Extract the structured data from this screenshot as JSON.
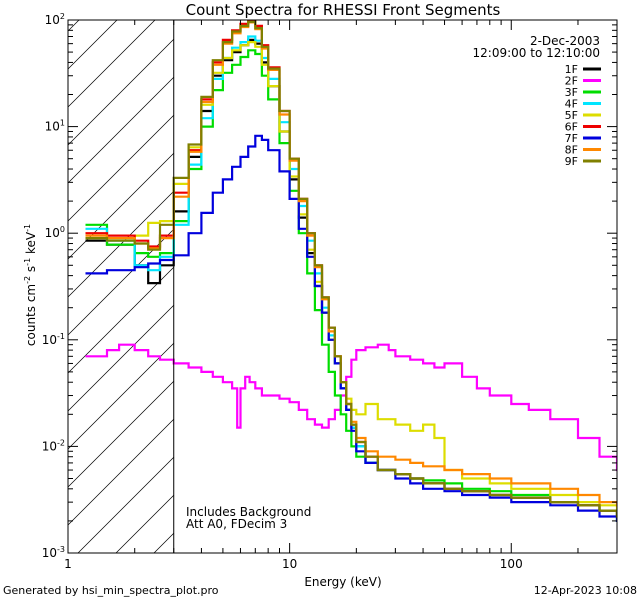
{
  "chart_data": {
    "type": "line",
    "title": "Count Spectra for RHESSI Front Segments",
    "xlabel": "Energy (keV)",
    "ylabel_parts": [
      "counts cm",
      "-2",
      " s",
      "-1",
      " keV",
      "-1"
    ],
    "xscale": "log",
    "yscale": "log",
    "xlim": [
      1,
      300
    ],
    "ylim": [
      0.001,
      100
    ],
    "x_tick_labels": [
      {
        "value": 1,
        "label": "1"
      },
      {
        "value": 10,
        "label": "10"
      },
      {
        "value": 100,
        "label": "100"
      }
    ],
    "y_tick_labels": [
      {
        "value": 0.001,
        "base": "10",
        "exp": "-3"
      },
      {
        "value": 0.01,
        "base": "10",
        "exp": "-2"
      },
      {
        "value": 0.1,
        "base": "10",
        "exp": "-1"
      },
      {
        "value": 1,
        "base": "10",
        "exp": "0"
      },
      {
        "value": 10,
        "base": "10",
        "exp": "1"
      },
      {
        "value": 100,
        "base": "10",
        "exp": "2"
      }
    ],
    "date_label": "2-Dec-2003",
    "time_range_label": "12:09:00 to 12:10:00",
    "attenuator_shade_max_keV": 3,
    "annotations": [
      "Includes Background",
      "Att A0, FDecim 3"
    ],
    "footer_left": "Generated by hsi_min_spectra_plot.pro",
    "footer_right": "12-Apr-2023 10:08",
    "series": [
      {
        "name": "1F",
        "color": "#000000",
        "x": [
          1.2,
          1.5,
          2,
          2.3,
          2.6,
          3,
          3.5,
          4,
          4.5,
          5,
          5.5,
          6,
          6.5,
          7,
          7.5,
          8,
          9,
          10,
          11,
          12,
          13,
          14,
          15,
          16,
          17,
          18,
          19,
          20,
          22,
          25,
          30,
          35,
          40,
          50,
          60,
          80,
          100,
          150,
          200,
          250,
          300
        ],
        "y": [
          0.85,
          0.78,
          0.5,
          0.34,
          0.5,
          1.6,
          5.2,
          14,
          30,
          42,
          50,
          58,
          65,
          60,
          40,
          24,
          9,
          3.2,
          1.4,
          0.65,
          0.32,
          0.18,
          0.1,
          0.06,
          0.035,
          0.022,
          0.015,
          0.01,
          0.007,
          0.006,
          0.0055,
          0.005,
          0.0045,
          0.004,
          0.0038,
          0.0035,
          0.0033,
          0.003,
          0.0028,
          0.0025,
          0.0022
        ]
      },
      {
        "name": "2F",
        "color": "#ff00ff",
        "x": [
          1.2,
          1.5,
          1.7,
          2,
          2.3,
          2.6,
          3,
          3.5,
          4,
          4.5,
          5,
          5.5,
          5.8,
          6,
          6.3,
          6.6,
          7,
          7.5,
          8,
          9,
          10,
          11,
          12,
          13,
          14,
          15,
          16,
          17,
          18,
          19,
          20,
          22,
          25,
          28,
          30,
          35,
          40,
          45,
          50,
          60,
          70,
          80,
          100,
          120,
          150,
          200,
          250,
          300
        ],
        "y": [
          0.07,
          0.08,
          0.09,
          0.08,
          0.07,
          0.065,
          0.06,
          0.055,
          0.05,
          0.045,
          0.04,
          0.035,
          0.015,
          0.035,
          0.045,
          0.04,
          0.035,
          0.03,
          0.03,
          0.028,
          0.026,
          0.022,
          0.018,
          0.016,
          0.015,
          0.018,
          0.022,
          0.03,
          0.045,
          0.065,
          0.08,
          0.085,
          0.09,
          0.08,
          0.07,
          0.065,
          0.06,
          0.055,
          0.06,
          0.045,
          0.035,
          0.03,
          0.025,
          0.022,
          0.018,
          0.012,
          0.008,
          0.006
        ]
      },
      {
        "name": "3F",
        "color": "#00dd00",
        "x": [
          1.2,
          1.5,
          2,
          2.3,
          2.6,
          3,
          3.5,
          4,
          4.5,
          5,
          5.5,
          6,
          6.5,
          7,
          7.5,
          8,
          9,
          10,
          11,
          12,
          13,
          14,
          15,
          16,
          17,
          18,
          19,
          20,
          22,
          25,
          30,
          35,
          40,
          50,
          60,
          80,
          100,
          150,
          200,
          250,
          300
        ],
        "y": [
          1.2,
          0.78,
          0.65,
          0.6,
          0.65,
          1.3,
          4,
          10,
          22,
          32,
          38,
          45,
          52,
          48,
          30,
          18,
          7,
          2.5,
          1,
          0.42,
          0.19,
          0.09,
          0.05,
          0.03,
          0.02,
          0.014,
          0.01,
          0.008,
          0.007,
          0.006,
          0.0055,
          0.005,
          0.0048,
          0.0045,
          0.004,
          0.0038,
          0.0035,
          0.003,
          0.0028,
          0.0025,
          0.002
        ]
      },
      {
        "name": "4F",
        "color": "#00e5ff",
        "x": [
          1.2,
          1.5,
          2,
          2.3,
          2.6,
          3,
          3.5,
          4,
          4.5,
          5,
          5.5,
          6,
          6.5,
          7,
          7.5,
          8,
          9,
          10,
          11,
          12,
          13,
          14,
          15,
          16,
          17,
          18,
          19,
          20,
          22,
          25,
          30,
          35,
          40,
          50,
          60,
          80,
          100,
          150,
          200,
          250,
          300
        ],
        "y": [
          1.1,
          0.85,
          0.5,
          0.45,
          0.6,
          1.2,
          4.4,
          12,
          28,
          44,
          55,
          62,
          70,
          64,
          44,
          28,
          11,
          4,
          1.8,
          0.85,
          0.42,
          0.2,
          0.11,
          0.06,
          0.035,
          0.022,
          0.015,
          0.01,
          0.007,
          0.006,
          0.0055,
          0.005,
          0.0045,
          0.004,
          0.0038,
          0.0035,
          0.0033,
          0.003,
          0.0028,
          0.0025,
          0.002
        ]
      },
      {
        "name": "5F",
        "color": "#dddd00",
        "x": [
          1.2,
          1.5,
          2,
          2.3,
          2.6,
          3,
          3.5,
          4,
          4.5,
          5,
          5.5,
          6,
          6.5,
          7,
          7.5,
          8,
          9,
          10,
          11,
          12,
          13,
          14,
          15,
          16,
          17,
          18,
          19,
          20,
          22,
          25,
          30,
          35,
          40,
          45,
          50,
          60,
          80,
          100,
          150,
          200,
          250,
          300
        ],
        "y": [
          0.9,
          0.9,
          0.95,
          1.25,
          1.3,
          2.9,
          6.4,
          16,
          32,
          44,
          52,
          58,
          62,
          56,
          38,
          24,
          9,
          3.4,
          1.5,
          0.7,
          0.35,
          0.18,
          0.1,
          0.06,
          0.04,
          0.028,
          0.022,
          0.02,
          0.025,
          0.018,
          0.016,
          0.014,
          0.016,
          0.012,
          0.006,
          0.005,
          0.0045,
          0.004,
          0.0035,
          0.003,
          0.0028,
          0.0025
        ]
      },
      {
        "name": "6F",
        "color": "#ee0000",
        "x": [
          1.2,
          1.5,
          2,
          2.3,
          2.6,
          3,
          3.5,
          4,
          4.5,
          5,
          5.5,
          6,
          6.5,
          7,
          7.5,
          8,
          9,
          10,
          11,
          12,
          13,
          14,
          15,
          16,
          17,
          18,
          19,
          20,
          22,
          25,
          30,
          35,
          40,
          50,
          60,
          80,
          100,
          150,
          200,
          250,
          300
        ],
        "y": [
          1,
          0.95,
          0.85,
          0.75,
          0.95,
          2.4,
          6,
          18,
          40,
          65,
          80,
          92,
          100,
          88,
          58,
          36,
          14,
          5,
          2.1,
          1,
          0.5,
          0.25,
          0.13,
          0.07,
          0.04,
          0.025,
          0.016,
          0.011,
          0.008,
          0.006,
          0.0055,
          0.005,
          0.0045,
          0.004,
          0.0038,
          0.0035,
          0.0033,
          0.003,
          0.0028,
          0.0025,
          0.0022
        ]
      },
      {
        "name": "7F",
        "color": "#0000dd",
        "x": [
          1.2,
          1.5,
          2,
          2.3,
          2.6,
          3,
          3.5,
          4,
          4.5,
          5,
          5.5,
          6,
          6.5,
          7,
          7.5,
          8,
          9,
          10,
          11,
          12,
          13,
          14,
          15,
          16,
          17,
          18,
          19,
          20,
          22,
          25,
          30,
          35,
          40,
          50,
          60,
          80,
          100,
          150,
          200,
          250,
          300
        ],
        "y": [
          0.42,
          0.45,
          0.48,
          0.52,
          0.56,
          0.62,
          1,
          1.55,
          2.4,
          3.2,
          4.2,
          5.2,
          6.5,
          8.2,
          7.5,
          6,
          3.8,
          2.1,
          1.1,
          0.6,
          0.32,
          0.18,
          0.1,
          0.06,
          0.035,
          0.022,
          0.014,
          0.009,
          0.007,
          0.006,
          0.005,
          0.0045,
          0.004,
          0.0038,
          0.0035,
          0.0033,
          0.003,
          0.0028,
          0.0025,
          0.0022,
          0.002
        ]
      },
      {
        "name": "8F",
        "color": "#ff8800",
        "x": [
          1.2,
          1.5,
          2,
          2.3,
          2.6,
          3,
          3.5,
          4,
          4.5,
          5,
          5.5,
          6,
          6.5,
          7,
          7.5,
          8,
          9,
          10,
          11,
          12,
          13,
          14,
          15,
          16,
          17,
          18,
          19,
          20,
          22,
          25,
          30,
          35,
          40,
          50,
          60,
          80,
          100,
          150,
          200,
          250,
          300
        ],
        "y": [
          0.95,
          0.9,
          0.8,
          0.72,
          0.9,
          2.2,
          5.8,
          17,
          38,
          60,
          75,
          86,
          95,
          82,
          54,
          34,
          13,
          4.8,
          2,
          0.95,
          0.48,
          0.24,
          0.12,
          0.07,
          0.04,
          0.025,
          0.017,
          0.012,
          0.009,
          0.008,
          0.0075,
          0.007,
          0.0065,
          0.006,
          0.0055,
          0.005,
          0.0045,
          0.004,
          0.0035,
          0.003,
          0.0028
        ]
      },
      {
        "name": "9F",
        "color": "#808000",
        "x": [
          1.2,
          1.5,
          2,
          2.3,
          2.6,
          3,
          3.5,
          4,
          4.5,
          5,
          5.5,
          6,
          6.5,
          7,
          7.5,
          8,
          9,
          10,
          11,
          12,
          13,
          14,
          15,
          16,
          17,
          18,
          19,
          20,
          22,
          25,
          30,
          35,
          40,
          50,
          60,
          80,
          100,
          150,
          200,
          250,
          300
        ],
        "y": [
          0.9,
          0.85,
          0.8,
          0.7,
          1.2,
          3.3,
          6.8,
          19,
          42,
          62,
          78,
          88,
          96,
          84,
          56,
          35,
          14,
          5,
          2.1,
          1,
          0.5,
          0.25,
          0.13,
          0.07,
          0.04,
          0.025,
          0.016,
          0.011,
          0.008,
          0.006,
          0.0055,
          0.005,
          0.0045,
          0.004,
          0.0038,
          0.0035,
          0.0033,
          0.003,
          0.0028,
          0.0025,
          0.0022
        ]
      }
    ]
  }
}
